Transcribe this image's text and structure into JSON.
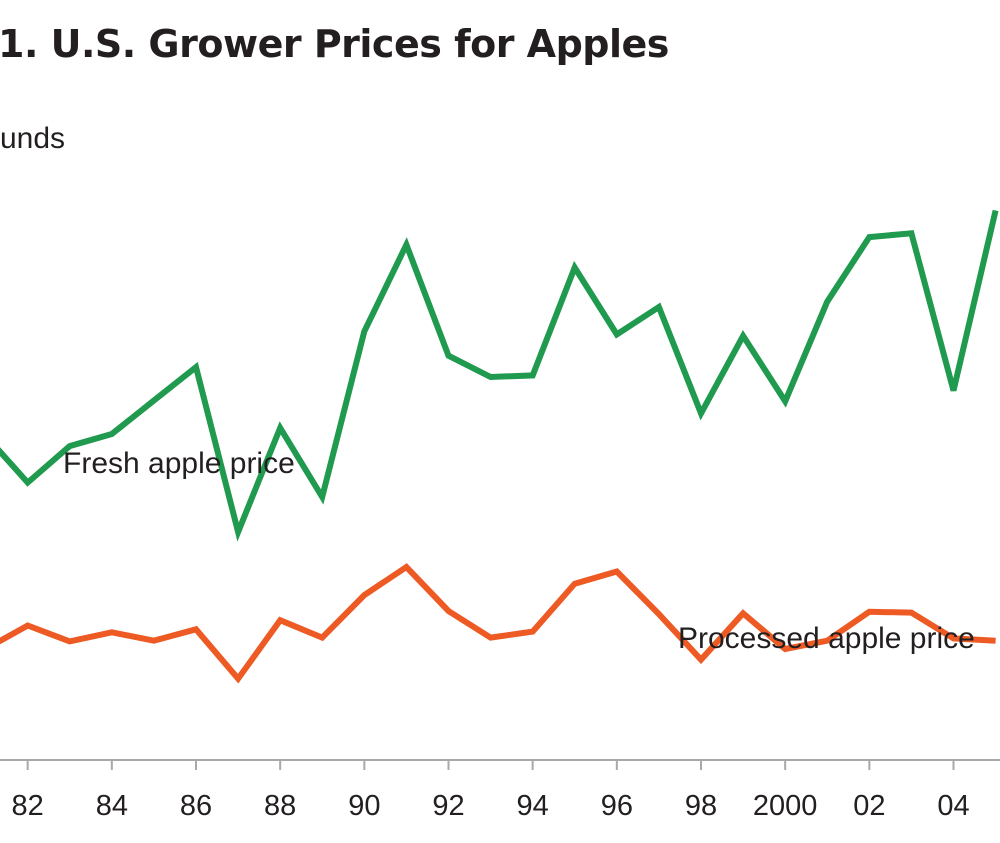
{
  "header": {
    "title": "1.  U.S. Grower Prices for Apples",
    "unit_label": "unds"
  },
  "chart_data": {
    "type": "line",
    "x": [
      1981,
      1982,
      1983,
      1984,
      1985,
      1986,
      1987,
      1988,
      1989,
      1990,
      1991,
      1992,
      1993,
      1994,
      1995,
      1996,
      1997,
      1998,
      1999,
      2000,
      2001,
      2002,
      2003,
      2004,
      2005
    ],
    "x_tick_values": [
      1982,
      1984,
      1986,
      1988,
      1990,
      1992,
      1994,
      1996,
      1998,
      2000,
      2002,
      2004
    ],
    "x_tick_labels": [
      "82",
      "84",
      "86",
      "88",
      "90",
      "92",
      "94",
      "96",
      "98",
      "2000",
      "02",
      "04"
    ],
    "xlim": [
      1981.2,
      2005.2
    ],
    "ylim": [
      0,
      100
    ],
    "series": [
      {
        "name": "Fresh apple price",
        "color": "#1f9a4f",
        "values": [
          42.7,
          36.5,
          41.3,
          42.9,
          47.3,
          51.7,
          30.0,
          43.7,
          34.6,
          56.4,
          67.8,
          53.2,
          50.4,
          50.6,
          64.8,
          56.0,
          59.6,
          45.6,
          55.8,
          47.2,
          60.3,
          68.8,
          69.3,
          48.6,
          72.3
        ]
      },
      {
        "name": "Processed apple price",
        "color": "#ee5a24",
        "values": [
          14.6,
          17.7,
          15.6,
          16.8,
          15.7,
          17.2,
          10.7,
          18.4,
          16.1,
          21.7,
          25.4,
          19.6,
          16.1,
          16.9,
          23.2,
          24.8,
          19.2,
          13.2,
          19.3,
          14.6,
          15.7,
          19.5,
          19.4,
          16.0,
          15.7
        ]
      }
    ]
  }
}
